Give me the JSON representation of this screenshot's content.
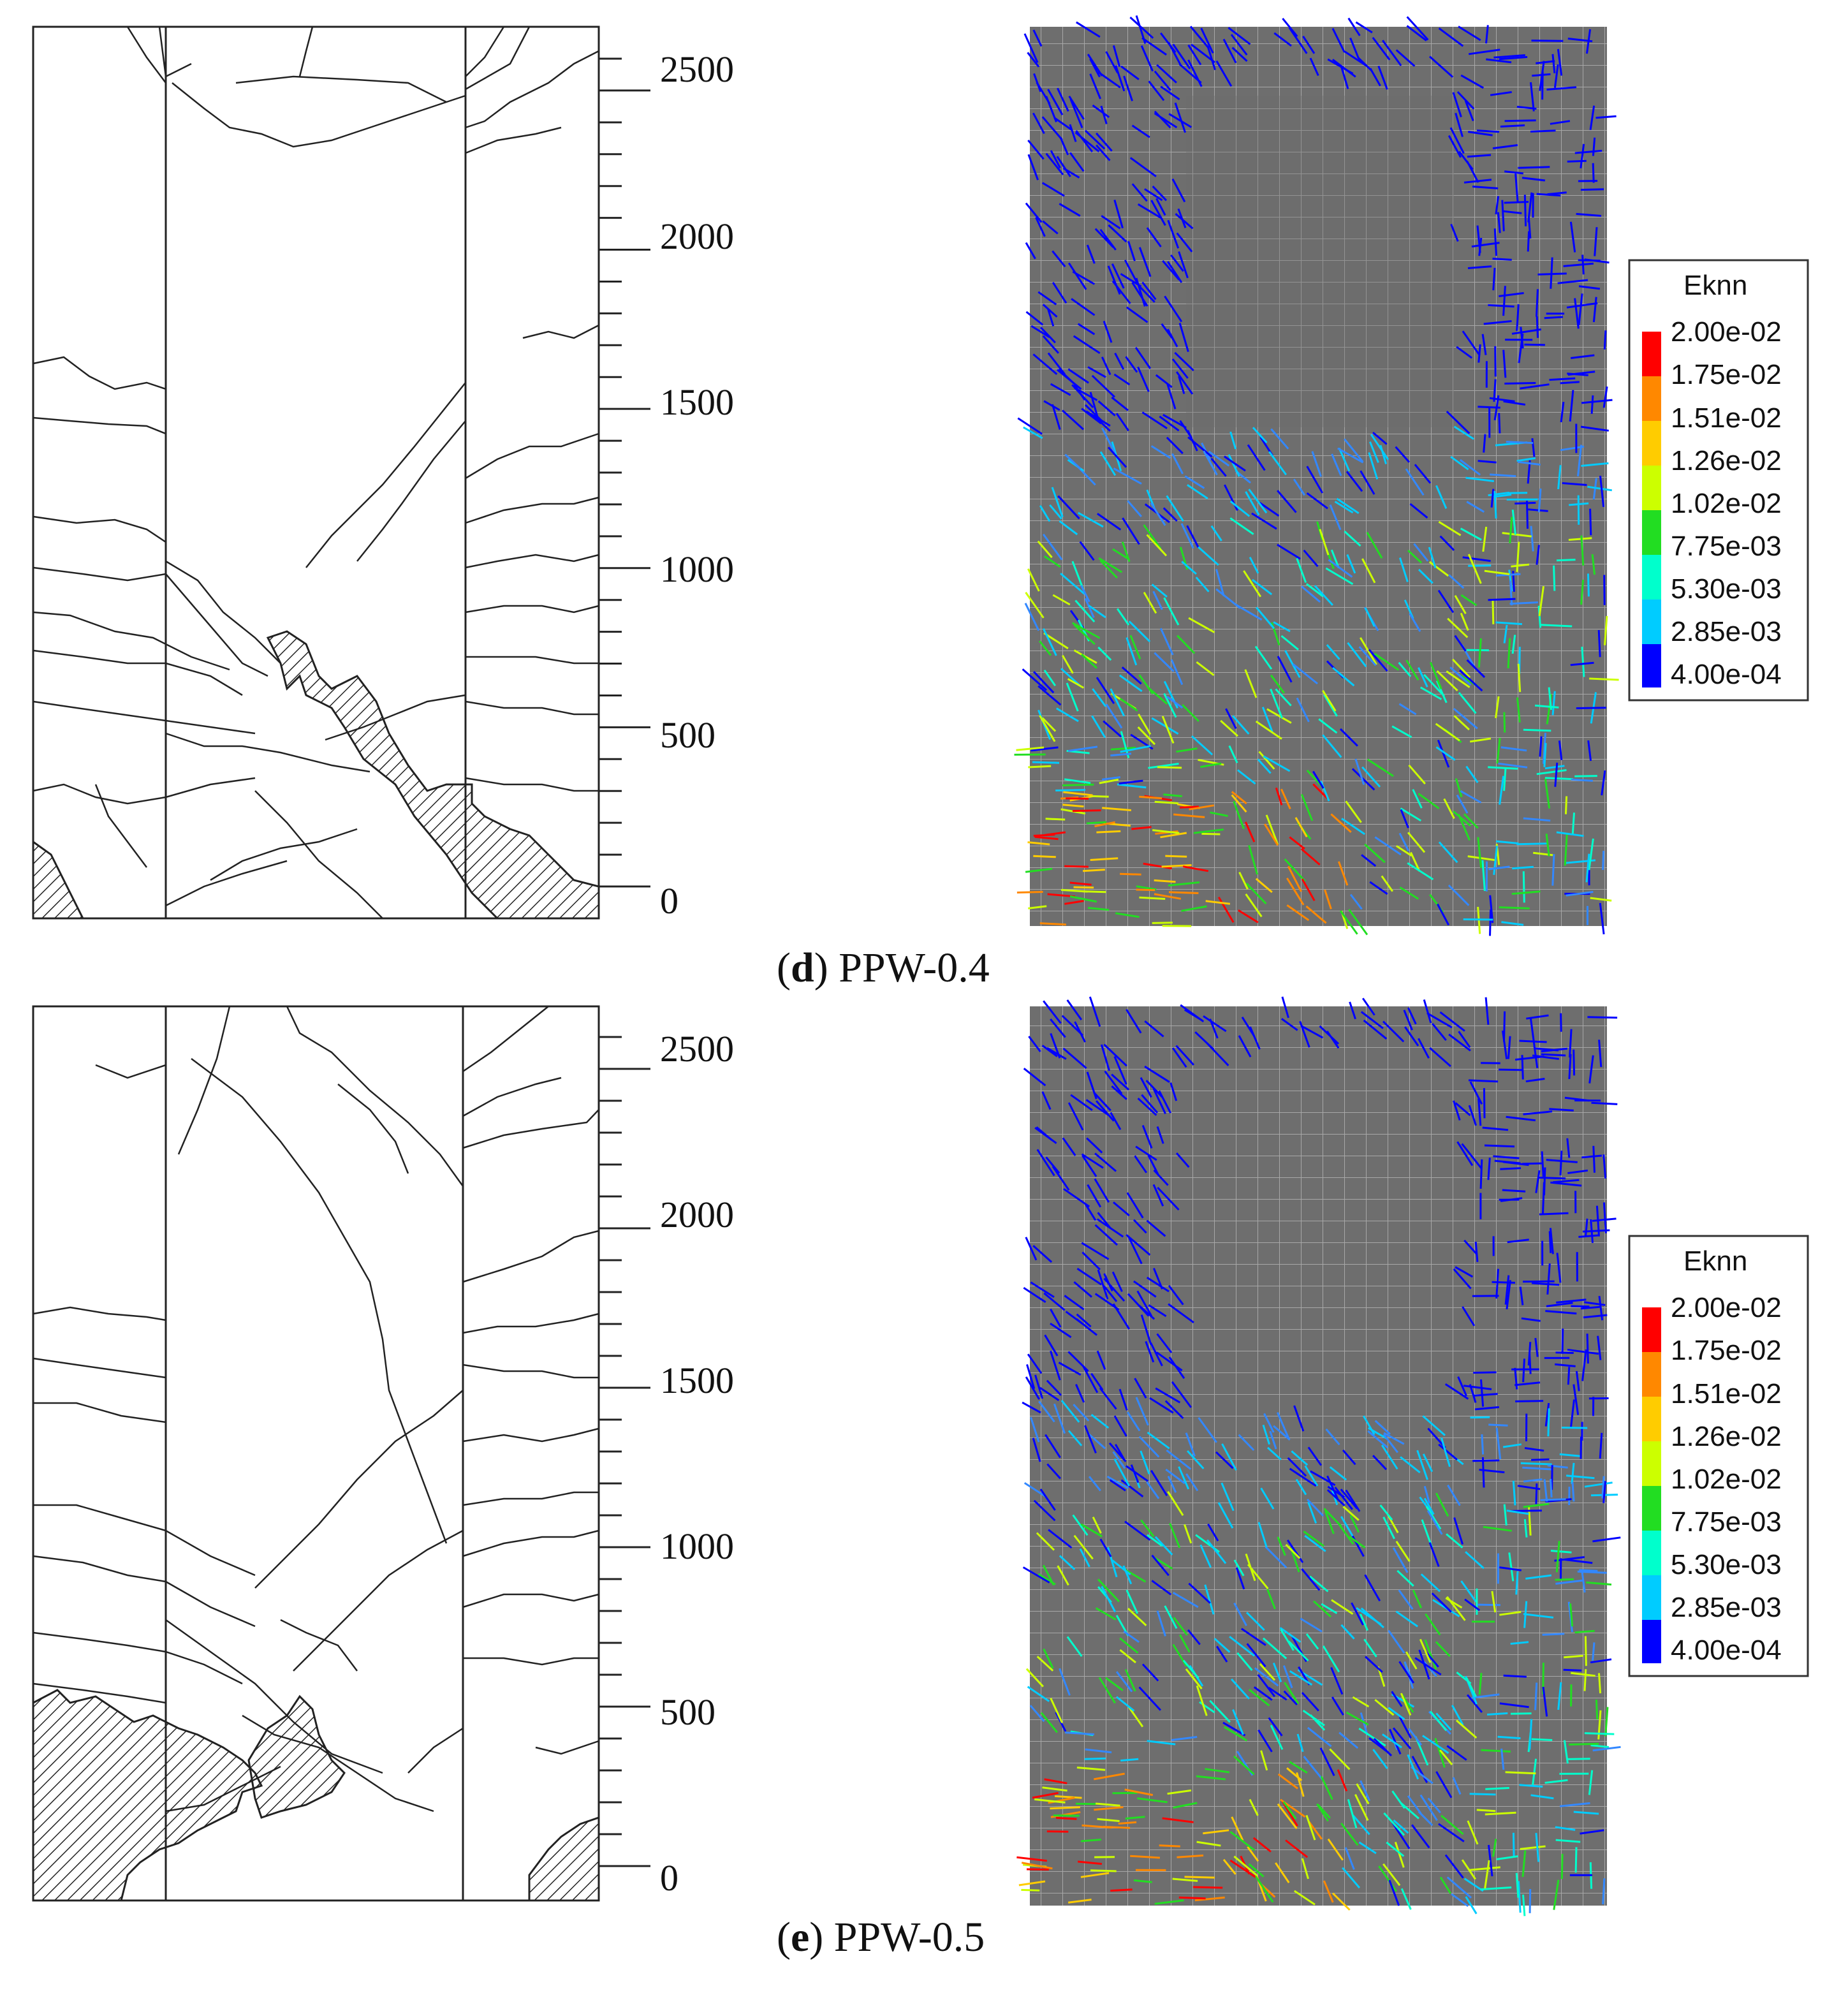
{
  "panels": [
    {
      "id": "d",
      "caption_letter": "d",
      "caption_text": " PPW-0.4",
      "scale_labels": [
        "2500",
        "2000",
        "1500",
        "1000",
        "500",
        "0"
      ],
      "legend_title": "Eknn",
      "legend_values": [
        "2.00e-02",
        "1.75e-02",
        "1.51e-02",
        "1.26e-02",
        "1.02e-02",
        "7.75e-03",
        "5.30e-03",
        "2.85e-03",
        "4.00e-04"
      ]
    },
    {
      "id": "e",
      "caption_letter": "e",
      "caption_text": " PPW-0.5",
      "scale_labels": [
        "2500",
        "2000",
        "1500",
        "1000",
        "500",
        "0"
      ],
      "legend_title": "Eknn",
      "legend_values": [
        "2.00e-02",
        "1.75e-02",
        "1.51e-02",
        "1.26e-02",
        "1.02e-02",
        "7.75e-03",
        "5.30e-03",
        "2.85e-03",
        "4.00e-04"
      ]
    }
  ],
  "colors": {
    "mesh_bg": "#6e6e6e",
    "mesh_grid": "#9a9a9a",
    "legend_scale": [
      "#ff0000",
      "#ff8800",
      "#ffcc00",
      "#ccff00",
      "#22dd22",
      "#00ffcc",
      "#00ccff",
      "#3388ff",
      "#0000ff"
    ]
  }
}
